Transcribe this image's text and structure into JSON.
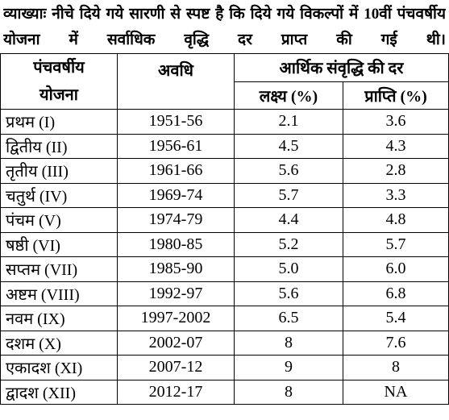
{
  "explanation": "व्याख्याः नीचे दिये गये सारणी से स्पष्ट है कि दिये गये विकल्पों में 10वीं पंचवर्षीय योजना में सर्वाधिक वृद्धि दर प्राप्त की गई थी।",
  "table": {
    "headers": {
      "plan": "पंचवर्षीय योजना",
      "period": "अवधि",
      "growth": "आर्थिक संवृद्धि की दर",
      "target": "लक्ष्य (%)",
      "achieved": "प्राप्ति (%)"
    },
    "rows": [
      [
        "प्रथम (I)",
        "1951-56",
        "2.1",
        "3.6"
      ],
      [
        "द्वितीय (II)",
        "1956-61",
        "4.5",
        "4.3"
      ],
      [
        "तृतीय (III)",
        "1961-66",
        "5.6",
        "2.8"
      ],
      [
        "चतुर्थ (IV)",
        "1969-74",
        "5.7",
        "3.3"
      ],
      [
        "पंचम (V)",
        "1974-79",
        "4.4",
        "4.8"
      ],
      [
        "षष्ठी (VI)",
        "1980-85",
        "5.2",
        "5.7"
      ],
      [
        "सप्तम (VII)",
        "1985-90",
        "5.0",
        "6.0"
      ],
      [
        "अष्टम (VIII)",
        "1992-97",
        "5.6",
        "6.8"
      ],
      [
        "नवम (IX)",
        "1997-2002",
        "6.5",
        "5.4"
      ],
      [
        "दशम (X)",
        "2002-07",
        "8",
        "7.6"
      ],
      [
        "एकादश (XI)",
        "2007-12",
        "9",
        "8"
      ],
      [
        "द्वादश (XII)",
        "2012-17",
        "8",
        "NA"
      ]
    ]
  }
}
